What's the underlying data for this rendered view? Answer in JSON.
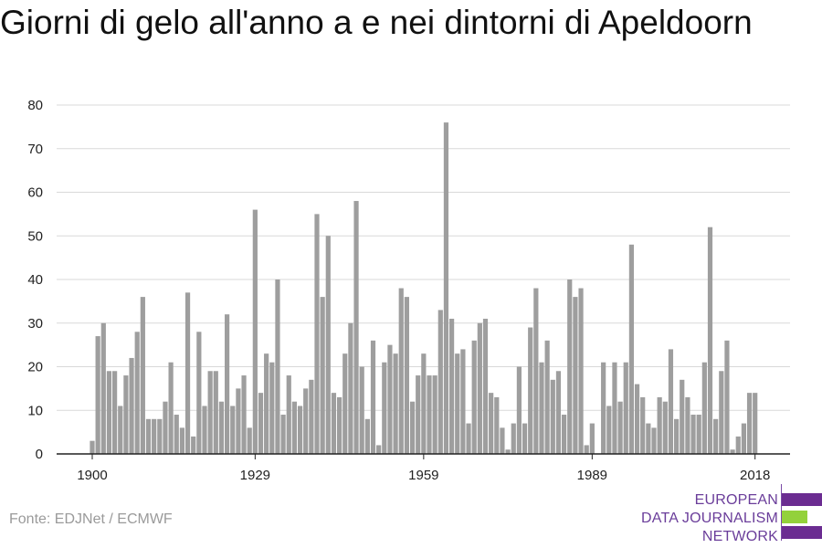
{
  "title": "Giorni di gelo all'anno a e nei dintorni di Apeldoorn",
  "source": "Fonte: EDJNet / ECMWF",
  "logo": {
    "line1": "EUROPEAN",
    "line2": "DATA JOURNALISM",
    "line3": "NETWORK"
  },
  "colors": {
    "bar": "#9e9e9e",
    "grid": "#d9d9d9",
    "axis": "#222222",
    "purple": "#6b2c91",
    "green": "#93d13b"
  },
  "chart_data": {
    "type": "bar",
    "title": "Giorni di gelo all'anno a e nei dintorni di Apeldoorn",
    "xlabel": "",
    "ylabel": "",
    "ylim": [
      0,
      80
    ],
    "yticks": [
      0,
      10,
      20,
      30,
      40,
      50,
      60,
      70,
      80
    ],
    "xticks": [
      "1900",
      "1929",
      "1959",
      "1989",
      "2018"
    ],
    "grid": true,
    "x": [
      1900,
      1901,
      1902,
      1903,
      1904,
      1905,
      1906,
      1907,
      1908,
      1909,
      1910,
      1911,
      1912,
      1913,
      1914,
      1915,
      1916,
      1917,
      1918,
      1919,
      1920,
      1921,
      1922,
      1923,
      1924,
      1925,
      1926,
      1927,
      1928,
      1929,
      1930,
      1931,
      1932,
      1933,
      1934,
      1935,
      1936,
      1937,
      1938,
      1939,
      1940,
      1941,
      1942,
      1943,
      1944,
      1945,
      1946,
      1947,
      1948,
      1949,
      1950,
      1951,
      1952,
      1953,
      1954,
      1955,
      1956,
      1957,
      1958,
      1959,
      1960,
      1961,
      1962,
      1963,
      1964,
      1965,
      1966,
      1967,
      1968,
      1969,
      1970,
      1971,
      1972,
      1973,
      1974,
      1975,
      1976,
      1977,
      1978,
      1979,
      1980,
      1981,
      1982,
      1983,
      1984,
      1985,
      1986,
      1987,
      1988,
      1989,
      1990,
      1991,
      1992,
      1993,
      1994,
      1995,
      1996,
      1997,
      1998,
      1999,
      2000,
      2001,
      2002,
      2003,
      2004,
      2005,
      2006,
      2007,
      2008,
      2009,
      2010,
      2011,
      2012,
      2013,
      2014,
      2015,
      2016,
      2017,
      2018
    ],
    "values": [
      3,
      27,
      30,
      19,
      19,
      11,
      18,
      22,
      28,
      36,
      8,
      8,
      8,
      12,
      21,
      9,
      6,
      37,
      4,
      28,
      11,
      19,
      19,
      12,
      32,
      11,
      15,
      18,
      6,
      56,
      14,
      23,
      21,
      40,
      9,
      18,
      12,
      11,
      15,
      17,
      55,
      36,
      50,
      14,
      13,
      23,
      30,
      58,
      20,
      8,
      26,
      2,
      21,
      25,
      23,
      38,
      36,
      12,
      18,
      23,
      18,
      18,
      33,
      76,
      31,
      23,
      24,
      7,
      26,
      30,
      31,
      14,
      13,
      6,
      1,
      7,
      20,
      7,
      29,
      38,
      21,
      26,
      17,
      19,
      9,
      40,
      36,
      38,
      2,
      7,
      0,
      21,
      11,
      21,
      12,
      21,
      48,
      16,
      13,
      7,
      6,
      13,
      12,
      24,
      8,
      17,
      13,
      9,
      9,
      21,
      52,
      8,
      19,
      26,
      1,
      4,
      7,
      14,
      14
    ]
  }
}
